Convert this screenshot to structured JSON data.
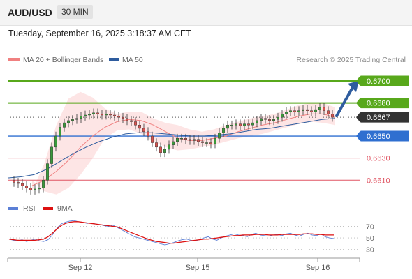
{
  "header": {
    "pair": "AUD/USD",
    "timeframe": "30 MIN"
  },
  "timestamp": "Tuesday, September 16, 2025 3:18:37 AM CET",
  "legend": [
    {
      "name": "MA 20 + Bollinger Bands",
      "color": "#f08080"
    },
    {
      "name": "MA 50",
      "color": "#2e5c9e"
    }
  ],
  "copyright": "Research © 2025 Trading Central",
  "colors": {
    "resistance": "#58a81b",
    "pivot": "#2f6fd0",
    "support": "#e05563",
    "current": "#333333",
    "arrow": "#2e5c9e",
    "candle_up": "#3a9a3a",
    "candle_down": "#d9534f",
    "bollinger_fill": "#fde1e1",
    "rsi": "#5b7fd6",
    "rsi_ma": "#dd1111"
  },
  "chart_data": [
    {
      "type": "candlestick",
      "x_ticks": [
        "Sep 12",
        "Sep 15",
        "Sep 16"
      ],
      "ylim": [
        0.6595,
        0.6712
      ],
      "levels": [
        {
          "label": "0.6700",
          "value": 0.67,
          "kind": "resistance"
        },
        {
          "label": "0.6680",
          "value": 0.668,
          "kind": "resistance"
        },
        {
          "label": "0.6667",
          "value": 0.6667,
          "kind": "current"
        },
        {
          "label": "0.6650",
          "value": 0.665,
          "kind": "pivot"
        },
        {
          "label": "0.6630",
          "value": 0.663,
          "kind": "support"
        },
        {
          "label": "0.6610",
          "value": 0.661,
          "kind": "support"
        }
      ],
      "close_series": [
        0.661,
        0.6608,
        0.6607,
        0.6605,
        0.6603,
        0.6601,
        0.6602,
        0.6603,
        0.661,
        0.6625,
        0.664,
        0.665,
        0.6658,
        0.6662,
        0.6664,
        0.6665,
        0.6666,
        0.6668,
        0.6669,
        0.667,
        0.6671,
        0.667,
        0.6669,
        0.667,
        0.6669,
        0.6668,
        0.6667,
        0.6666,
        0.6664,
        0.6663,
        0.666,
        0.6657,
        0.6654,
        0.665,
        0.6644,
        0.664,
        0.6635,
        0.6638,
        0.6642,
        0.6645,
        0.6648,
        0.6648,
        0.6647,
        0.6646,
        0.6647,
        0.6645,
        0.6644,
        0.6644,
        0.6643,
        0.6648,
        0.6653,
        0.6657,
        0.666,
        0.666,
        0.6661,
        0.6659,
        0.6661,
        0.666,
        0.6662,
        0.6664,
        0.6666,
        0.6665,
        0.6664,
        0.6665,
        0.6667,
        0.667,
        0.6672,
        0.6673,
        0.6672,
        0.6673,
        0.6674,
        0.6673,
        0.6672,
        0.6674,
        0.6676,
        0.6673,
        0.667,
        0.6667
      ],
      "ma20": [
        0.6605,
        0.661,
        0.6618,
        0.6628,
        0.664,
        0.665,
        0.6658,
        0.6663,
        0.6665,
        0.6664,
        0.666,
        0.6654,
        0.6648,
        0.6646,
        0.6646,
        0.6648,
        0.665,
        0.6654,
        0.6657,
        0.666,
        0.6662,
        0.6665,
        0.6668,
        0.667,
        0.667,
        0.6667
      ],
      "bb_upper": [
        0.66,
        0.6625,
        0.666,
        0.6684,
        0.669,
        0.6685,
        0.6675,
        0.667,
        0.6672,
        0.6672,
        0.6666,
        0.6662,
        0.666,
        0.6656,
        0.6654,
        0.6656,
        0.666,
        0.6663,
        0.6666,
        0.6668,
        0.667,
        0.6674,
        0.6678,
        0.668,
        0.668,
        0.6676
      ],
      "bb_lower": [
        0.661,
        0.66,
        0.6597,
        0.6603,
        0.6615,
        0.663,
        0.6648,
        0.6655,
        0.6656,
        0.6652,
        0.6645,
        0.664,
        0.6637,
        0.6638,
        0.664,
        0.6642,
        0.6645,
        0.6648,
        0.665,
        0.6652,
        0.6655,
        0.6658,
        0.6661,
        0.6663,
        0.6662,
        0.666
      ],
      "ma50": [
        0.6612,
        0.6613,
        0.6615,
        0.662,
        0.6627,
        0.6634,
        0.664,
        0.6645,
        0.6649,
        0.6652,
        0.6653,
        0.6653,
        0.6652,
        0.6651,
        0.665,
        0.665,
        0.6651,
        0.6652,
        0.6654,
        0.6656,
        0.6657,
        0.6659,
        0.6661,
        0.6663,
        0.6665,
        0.6666
      ],
      "arrow_target": 0.67
    },
    {
      "type": "line",
      "legend": [
        "RSI",
        "9MA"
      ],
      "y_ticks": [
        70,
        50,
        30
      ],
      "ylim": [
        20,
        85
      ],
      "series": [
        {
          "name": "RSI",
          "values": [
            48,
            46,
            45,
            47,
            44,
            46,
            48,
            45,
            44,
            47,
            55,
            66,
            74,
            77,
            79,
            80,
            78,
            77,
            75,
            76,
            74,
            73,
            71,
            70,
            72,
            68,
            64,
            60,
            56,
            52,
            50,
            48,
            46,
            44,
            42,
            40,
            38,
            40,
            42,
            45,
            47,
            48,
            46,
            45,
            47,
            50,
            52,
            48,
            46,
            50,
            53,
            55,
            57,
            55,
            54,
            52,
            56,
            58,
            55,
            54,
            53,
            55,
            56,
            54,
            57,
            58,
            55,
            53,
            56,
            58,
            55,
            54,
            57,
            52,
            50,
            49
          ]
        },
        {
          "name": "9MA",
          "values": [
            48,
            47,
            46,
            46,
            46,
            46,
            46,
            47,
            48,
            52,
            58,
            65,
            71,
            75,
            77,
            78,
            78,
            77,
            76,
            75,
            74,
            73,
            72,
            71,
            70,
            69,
            66,
            63,
            60,
            57,
            54,
            51,
            48,
            46,
            44,
            43,
            42,
            41,
            41,
            42,
            43,
            44,
            45,
            46,
            47,
            48,
            48,
            49,
            50,
            51,
            52,
            53,
            54,
            54,
            55,
            55,
            55,
            56,
            56,
            56,
            55,
            55,
            55,
            56,
            56,
            56,
            56,
            56,
            57,
            57,
            57,
            56,
            56,
            55,
            55,
            55
          ]
        }
      ]
    }
  ]
}
